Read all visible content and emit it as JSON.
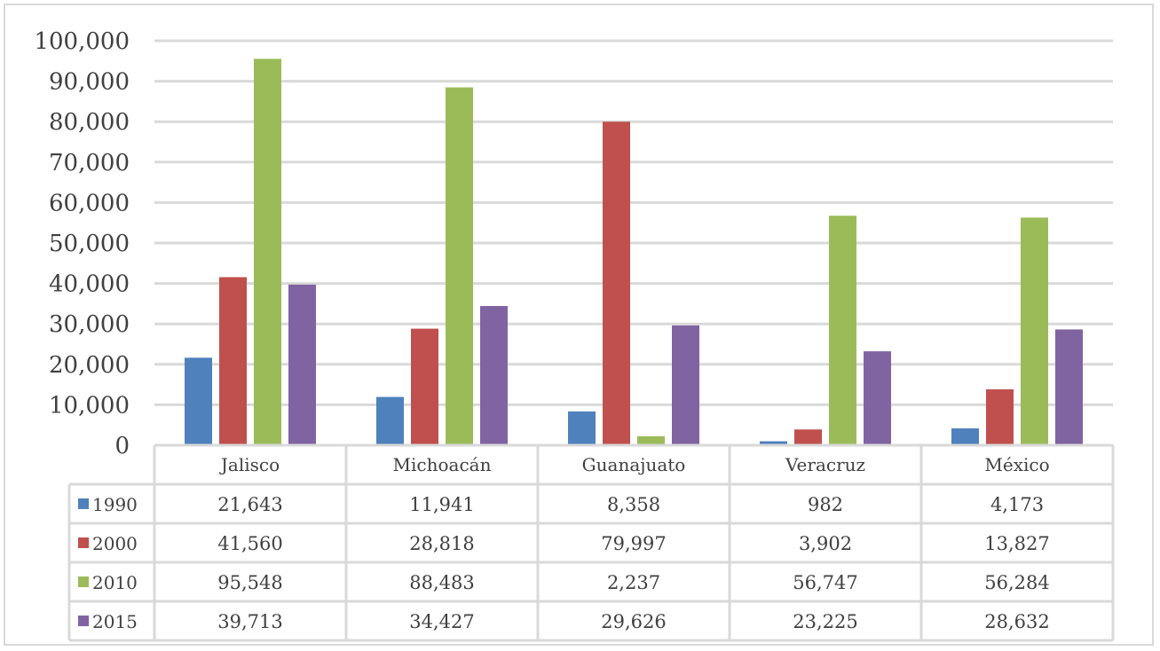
{
  "chart_data": {
    "type": "bar",
    "categories": [
      "Jalisco",
      "Michoacán",
      "Guanajuato",
      "Veracruz",
      "México"
    ],
    "series": [
      {
        "name": "1990",
        "color": "#4f81bd",
        "values": [
          21643,
          11941,
          8358,
          982,
          4173
        ],
        "labels": [
          "21,643",
          "11,941",
          "8,358",
          "982",
          "4,173"
        ]
      },
      {
        "name": "2000",
        "color": "#c0504d",
        "values": [
          41560,
          28818,
          79997,
          3902,
          13827
        ],
        "labels": [
          "41,560",
          "28,818",
          "79,997",
          "3,902",
          "13,827"
        ]
      },
      {
        "name": "2010",
        "color": "#9bbb59",
        "values": [
          95548,
          88483,
          2237,
          56747,
          56284
        ],
        "labels": [
          "95,548",
          "88,483",
          "2,237",
          "56,747",
          "56,284"
        ]
      },
      {
        "name": "2015",
        "color": "#8064a2",
        "values": [
          39713,
          34427,
          29626,
          23225,
          28632
        ],
        "labels": [
          "39,713",
          "34,427",
          "29,626",
          "23,225",
          "28,632"
        ]
      }
    ],
    "ylim": [
      0,
      100000
    ],
    "yticks": [
      0,
      10000,
      20000,
      30000,
      40000,
      50000,
      60000,
      70000,
      80000,
      90000,
      100000
    ],
    "ytick_labels": [
      "0",
      "10,000",
      "20,000",
      "30,000",
      "40,000",
      "50,000",
      "60,000",
      "70,000",
      "80,000",
      "90,000",
      "100,000"
    ],
    "grid": true,
    "legend": "data-table",
    "title": "",
    "xlabel": "",
    "ylabel": ""
  }
}
